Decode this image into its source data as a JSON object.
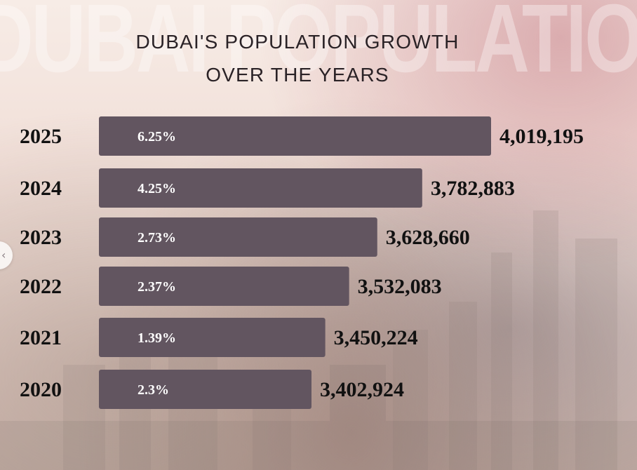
{
  "watermark": "DUBAI POPULATION",
  "title_line1": "DUBAI'S POPULATION GROWTH",
  "title_line2": "OVER THE YEARS",
  "colors": {
    "bar": "#625560",
    "bar_text": "#ffffff",
    "label_text": "#111111"
  },
  "icons": {
    "side_handle": "chevron-left-icon"
  },
  "chart_data": {
    "type": "bar",
    "orientation": "horizontal",
    "title": "DUBAI'S POPULATION GROWTH OVER THE YEARS",
    "categories": [
      "2025",
      "2024",
      "2023",
      "2022",
      "2021",
      "2020"
    ],
    "values": [
      4019195,
      3782883,
      3628660,
      3532083,
      3450224,
      3402924
    ],
    "value_labels": [
      "4,019,195",
      "3,782,883",
      "3,628,660",
      "3,532,083",
      "3,450,224",
      "3,402,924"
    ],
    "growth_labels": [
      "6.25%",
      "4.25%",
      "2.73%",
      "2.37%",
      "1.39%",
      "2.3%"
    ],
    "xlim": [
      2950000,
      4019195
    ],
    "grid": false,
    "legend": "none"
  }
}
